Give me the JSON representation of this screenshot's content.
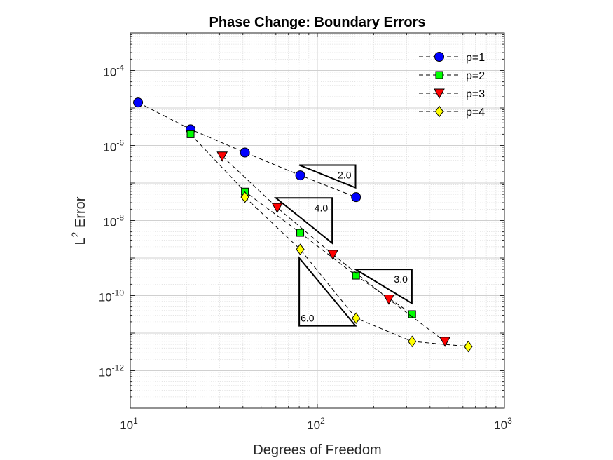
{
  "chart_data": {
    "type": "line",
    "scale": {
      "x": "log",
      "y": "log"
    },
    "title": "Phase Change: Boundary Errors",
    "xlabel": "Degrees of Freedom",
    "ylabel": {
      "base": "L",
      "sup": "2",
      "rest": " Error"
    },
    "xlim": [
      10,
      1000
    ],
    "ylim": [
      1e-13,
      0.001
    ],
    "x_ticks": [
      {
        "value": 10,
        "base": "10",
        "exp": "1"
      },
      {
        "value": 100,
        "base": "10",
        "exp": "2"
      },
      {
        "value": 1000,
        "base": "10",
        "exp": "3"
      }
    ],
    "y_ticks": [
      {
        "value": 1e-12,
        "base": "10",
        "exp": "-12"
      },
      {
        "value": 1e-10,
        "base": "10",
        "exp": "-10"
      },
      {
        "value": 1e-08,
        "base": "10",
        "exp": "-8"
      },
      {
        "value": 1e-06,
        "base": "10",
        "exp": "-6"
      },
      {
        "value": 0.0001,
        "base": "10",
        "exp": "-4"
      }
    ],
    "grid": true,
    "legend_position": "top-right",
    "series": [
      {
        "name": "p=1",
        "marker": "circle",
        "color": "#0000FF",
        "x": [
          11,
          21,
          41,
          81,
          161
        ],
        "y": [
          1.4e-05,
          2.7e-06,
          6.5e-07,
          1.6e-07,
          4.2e-08
        ]
      },
      {
        "name": "p=2",
        "marker": "square",
        "color": "#00FF00",
        "x": [
          21,
          41,
          81,
          161,
          321
        ],
        "y": [
          2e-06,
          5.9e-08,
          4.7e-09,
          3.4e-10,
          3.2e-11
        ]
      },
      {
        "name": "p=3",
        "marker": "triangle-down",
        "color": "#FF0000",
        "x": [
          31,
          61,
          121,
          241,
          481
        ],
        "y": [
          5.2e-07,
          2.2e-08,
          1.25e-09,
          8e-11,
          6e-12
        ]
      },
      {
        "name": "p=4",
        "marker": "diamond",
        "color": "#FFFF00",
        "x": [
          41,
          81,
          161,
          321,
          641
        ],
        "y": [
          4.2e-08,
          1.7e-09,
          2.5e-11,
          6e-12,
          4.4e-12
        ]
      }
    ],
    "slope_triangles": [
      {
        "label": "2.0",
        "order": 2,
        "x1": 80,
        "x2": 160,
        "y_top": 3e-07
      },
      {
        "label": "4.0",
        "order": 4,
        "x1": 60,
        "x2": 120,
        "y_top": 4e-08
      },
      {
        "label": "3.0",
        "order": 3,
        "x1": 160,
        "x2": 320,
        "y_top": 5e-10
      },
      {
        "label": "6.0",
        "order": 6,
        "x1": 80,
        "x2": 160,
        "y_top": 1e-09
      }
    ]
  }
}
